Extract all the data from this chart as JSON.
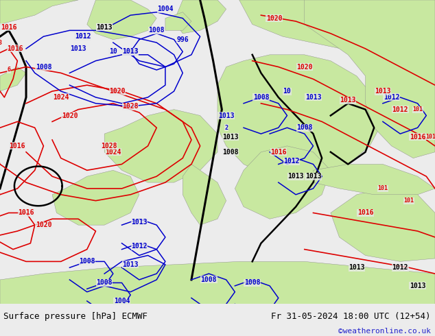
{
  "title_left": "Surface pressure [hPa] ECMWF",
  "title_right": "Fr 31-05-2024 18:00 UTC (12+54)",
  "watermark": "©weatheronline.co.uk",
  "bg_map_color": "#e8e8e8",
  "land_color": "#c8e8a0",
  "land_color2": "#b0d890",
  "fig_width": 6.34,
  "fig_height": 4.9,
  "dpi": 100,
  "bottom_bar_color": "#ececec",
  "title_fontsize": 9,
  "watermark_color": "#2222cc",
  "watermark_fontsize": 8,
  "label_fontsize": 7
}
